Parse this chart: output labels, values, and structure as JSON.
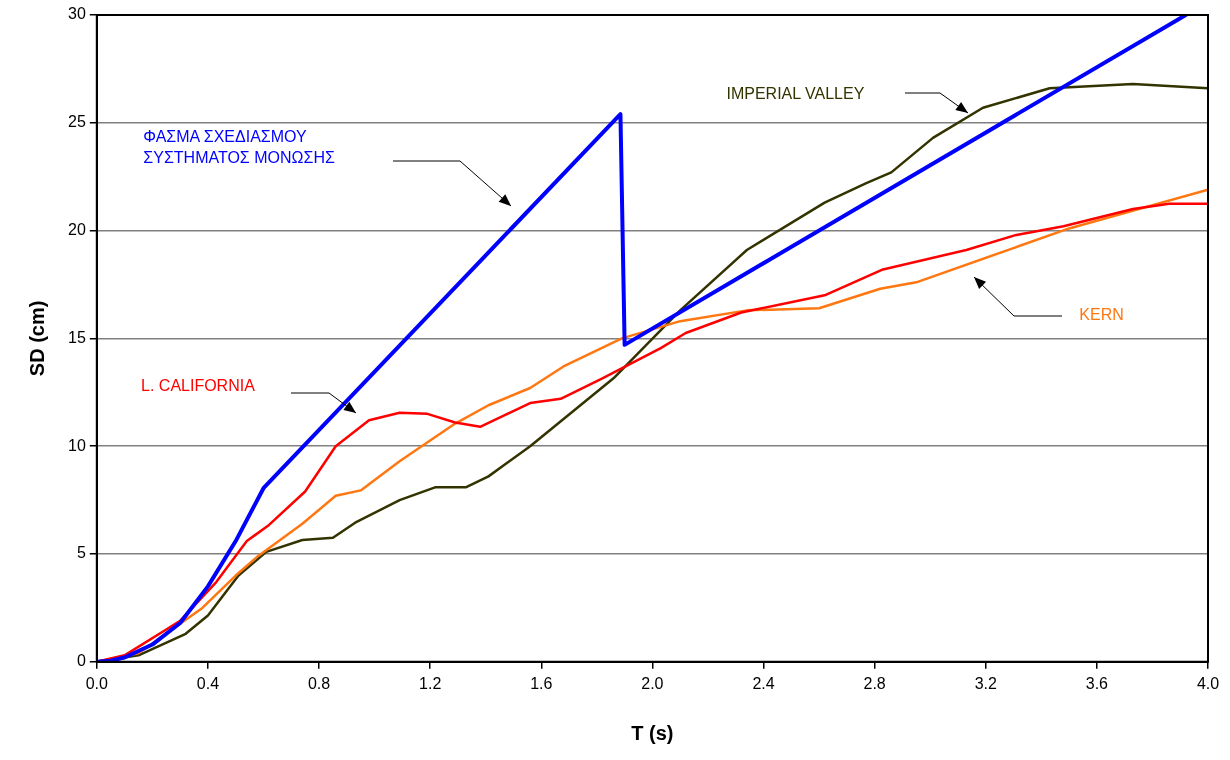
{
  "chart_data": {
    "type": "line",
    "xlabel": "T (s)",
    "ylabel": "SD (cm)",
    "xlim": [
      0,
      4
    ],
    "ylim": [
      0,
      30
    ],
    "xticks": [
      {
        "value": 0,
        "label": "0.0"
      },
      0.4,
      0.8,
      1.2,
      1.6,
      {
        "value": 2,
        "label": "2.0"
      },
      2.4,
      2.8,
      3.2,
      3.6,
      {
        "value": 4,
        "label": "4.0"
      }
    ],
    "yticks": [
      0,
      5,
      10,
      15,
      20,
      25,
      30
    ],
    "grid": "y",
    "marker": "none",
    "line_style": "solid",
    "series": [
      {
        "name": "ΦΑΣΜΑ ΣΧΕΔΙΑΣΜΟΥ ΣΥΣΤΗΜΑΤΟΣ ΜΟΝΩΣΗΣ",
        "color": "#0000ff",
        "x": [
          0,
          0.05,
          0.1,
          0.2,
          0.3,
          0.4,
          0.5,
          0.6,
          1.885,
          1.9,
          3.92
        ],
        "values": [
          0,
          0.05,
          0.2,
          0.8,
          1.8,
          3.5,
          5.6,
          8.05,
          25.4,
          14.7,
          30
        ]
      },
      {
        "name": "L. CALIFORNIA",
        "color": "#ff0000",
        "x": [
          0,
          0.1,
          0.25,
          0.3,
          0.43,
          0.54,
          0.62,
          0.75,
          0.86,
          0.98,
          1.09,
          1.19,
          1.29,
          1.38,
          1.56,
          1.67,
          1.82,
          2.03,
          2.12,
          2.32,
          2.62,
          2.83,
          3.13,
          3.31,
          3.48,
          3.73,
          3.86,
          4.0
        ],
        "values": [
          0,
          0.3,
          1.5,
          1.9,
          3.7,
          5.6,
          6.35,
          7.9,
          10.0,
          11.2,
          11.55,
          11.5,
          11.1,
          10.9,
          12.0,
          12.2,
          13.15,
          14.55,
          15.25,
          16.2,
          17.0,
          18.2,
          19.1,
          19.8,
          20.2,
          21.0,
          21.25,
          21.25
        ]
      },
      {
        "name": "KERN",
        "color": "#ff7711",
        "x": [
          0,
          0.15,
          0.38,
          0.5,
          0.58,
          0.74,
          0.86,
          0.95,
          1.09,
          1.29,
          1.41,
          1.56,
          1.68,
          1.89,
          2.1,
          2.34,
          2.6,
          2.82,
          2.95,
          3.5,
          4.0
        ],
        "values": [
          0,
          0.4,
          2.5,
          4.0,
          4.9,
          6.4,
          7.7,
          7.95,
          9.3,
          11.05,
          11.9,
          12.7,
          13.7,
          15.0,
          15.8,
          16.3,
          16.4,
          17.3,
          17.6,
          20.1,
          21.9
        ]
      },
      {
        "name": "IMPERIAL VALLEY",
        "color": "#333300",
        "x": [
          0,
          0.15,
          0.32,
          0.4,
          0.51,
          0.61,
          0.74,
          0.85,
          0.93,
          1.09,
          1.22,
          1.33,
          1.41,
          1.56,
          1.86,
          2.1,
          2.34,
          2.62,
          2.77,
          2.86,
          3.01,
          3.19,
          3.43,
          3.73,
          4.0
        ],
        "values": [
          0,
          0.3,
          1.3,
          2.15,
          4.0,
          5.1,
          5.65,
          5.75,
          6.45,
          7.5,
          8.1,
          8.1,
          8.6,
          10.0,
          13.15,
          16.3,
          19.1,
          21.3,
          22.2,
          22.7,
          24.3,
          25.7,
          26.6,
          26.8,
          26.6
        ]
      }
    ]
  }
}
